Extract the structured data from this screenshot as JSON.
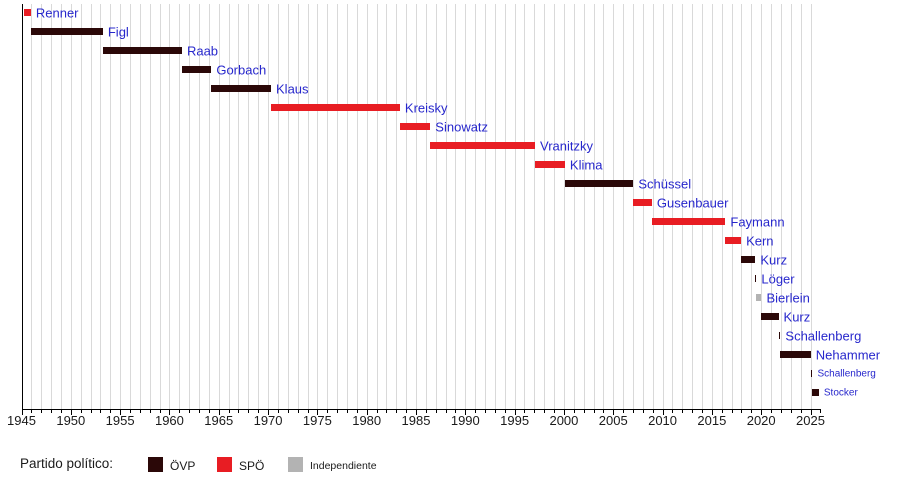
{
  "chart_data": {
    "type": "bar",
    "layout": "horizontal-timeline-gantt",
    "axis": {
      "x_min": 1945,
      "x_max": 2026,
      "major_tick_step": 5,
      "minor_tick_step": 1,
      "grid": true,
      "grid_color": "#d9d9d9"
    },
    "x_tick_labels": [
      "1945",
      "1950",
      "1955",
      "1960",
      "1965",
      "1970",
      "1975",
      "1980",
      "1985",
      "1990",
      "1995",
      "2000",
      "2005",
      "2010",
      "2015",
      "2020",
      "2025"
    ],
    "label_color": "#2727cc",
    "party_colors": {
      "ÖVP": "#2b0808",
      "SPÖ": "#e81d23",
      "Independiente": "#b3b3b3"
    },
    "chancellors": [
      {
        "name": "Renner",
        "party": "SPÖ",
        "start": 1945.3,
        "end": 1945.95,
        "small": false
      },
      {
        "name": "Figl",
        "party": "ÖVP",
        "start": 1945.95,
        "end": 1953.25,
        "small": false
      },
      {
        "name": "Raab",
        "party": "ÖVP",
        "start": 1953.25,
        "end": 1961.27,
        "small": false
      },
      {
        "name": "Gorbach",
        "party": "ÖVP",
        "start": 1961.27,
        "end": 1964.25,
        "small": false
      },
      {
        "name": "Klaus",
        "party": "ÖVP",
        "start": 1964.25,
        "end": 1970.3,
        "small": false
      },
      {
        "name": "Kreisky",
        "party": "SPÖ",
        "start": 1970.3,
        "end": 1983.37,
        "small": false
      },
      {
        "name": "Sinowatz",
        "party": "SPÖ",
        "start": 1983.37,
        "end": 1986.45,
        "small": false
      },
      {
        "name": "Vranitzky",
        "party": "SPÖ",
        "start": 1986.45,
        "end": 1997.07,
        "small": false
      },
      {
        "name": "Klima",
        "party": "SPÖ",
        "start": 1997.07,
        "end": 2000.1,
        "small": false
      },
      {
        "name": "Schüssel",
        "party": "ÖVP",
        "start": 2000.1,
        "end": 2007.04,
        "small": false
      },
      {
        "name": "Gusenbauer",
        "party": "SPÖ",
        "start": 2007.04,
        "end": 2008.92,
        "small": false
      },
      {
        "name": "Faymann",
        "party": "SPÖ",
        "start": 2008.92,
        "end": 2016.37,
        "small": false
      },
      {
        "name": "Kern",
        "party": "SPÖ",
        "start": 2016.37,
        "end": 2017.96,
        "small": false
      },
      {
        "name": "Kurz",
        "party": "ÖVP",
        "start": 2017.96,
        "end": 2019.41,
        "small": false
      },
      {
        "name": "Löger",
        "party": "ÖVP",
        "start": 2019.41,
        "end": 2019.5,
        "small": false
      },
      {
        "name": "Bierlein",
        "party": "Independiente",
        "start": 2019.5,
        "end": 2020.03,
        "small": false
      },
      {
        "name": "Kurz",
        "party": "ÖVP",
        "start": 2020.03,
        "end": 2021.76,
        "small": false
      },
      {
        "name": "Schallenberg",
        "party": "ÖVP",
        "start": 2021.76,
        "end": 2021.95,
        "small": false
      },
      {
        "name": "Nehammer",
        "party": "ÖVP",
        "start": 2021.95,
        "end": 2025.03,
        "small": false
      },
      {
        "name": "Schallenberg",
        "party": "ÖVP",
        "start": 2025.03,
        "end": 2025.2,
        "small": true
      },
      {
        "name": "Stocker",
        "party": "ÖVP",
        "start": 2025.2,
        "end": 2025.85,
        "small": true
      }
    ],
    "legend": {
      "title": "Partido político:",
      "items": [
        {
          "label": "ÖVP",
          "color": "#2b0808"
        },
        {
          "label": "SPÖ",
          "color": "#e81d23"
        },
        {
          "label": "Independiente",
          "color": "#b3b3b3"
        }
      ]
    }
  }
}
